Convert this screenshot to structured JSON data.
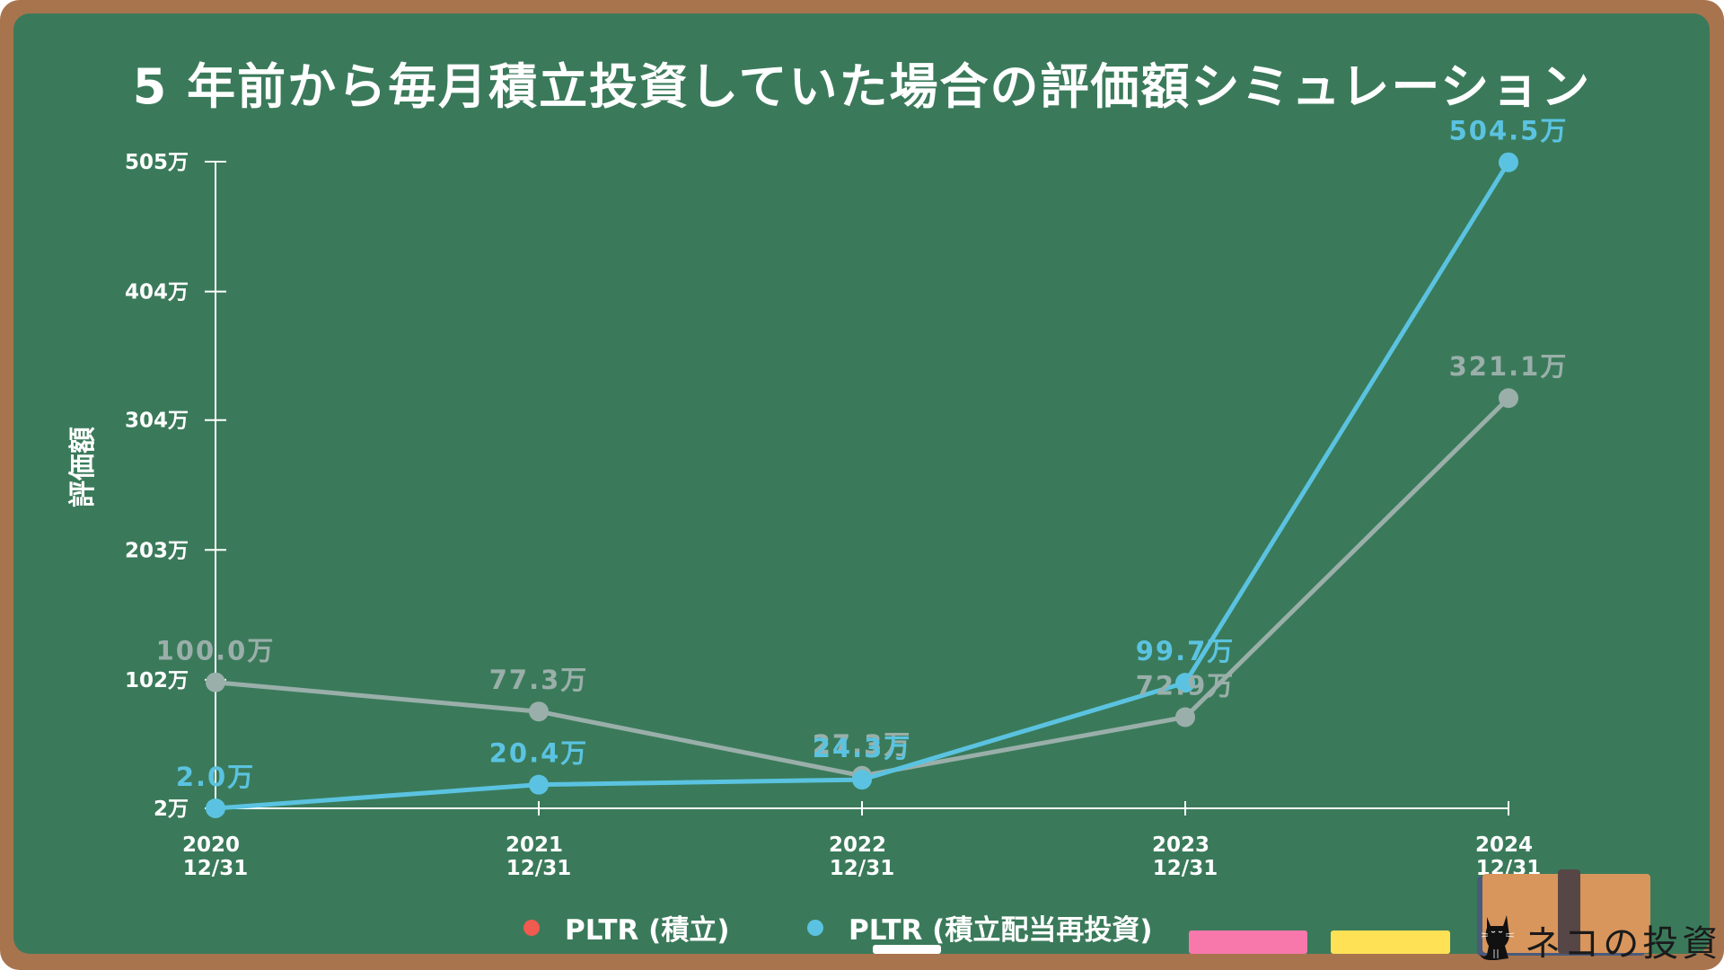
{
  "title": "5 年前から毎月積立投資していた場合の評価額シミュレーション",
  "colors": {
    "frame": "#A8744E",
    "board": "#3A7A5A",
    "series_gray": "#9AAFAA",
    "series_blue": "#5BC3E1",
    "legend_red": "#F05A4F",
    "chalk_white": "#FFFFFF",
    "chalk_pink": "#F878AC",
    "chalk_yellow": "#FFE156"
  },
  "legend": {
    "items": [
      {
        "label": "PLTR (積立)",
        "color": "#F05A4F"
      },
      {
        "label": "PLTR (積立配当再投資)",
        "color": "#5BC3E1"
      }
    ]
  },
  "brand": {
    "label": "ネコの投資",
    "icon": "black-cat-icon"
  },
  "chart_data": {
    "type": "line",
    "title": "5 年前から毎月積立投資していた場合の評価額シミュレーション",
    "xlabel": "",
    "ylabel": "評価額",
    "categories": [
      "2020\n12/31",
      "2021\n12/31",
      "2022\n12/31",
      "2023\n12/31",
      "2024\n12/31"
    ],
    "x_tick_labels": [
      {
        "year": "2020",
        "date": "12/31"
      },
      {
        "year": "2021",
        "date": "12/31"
      },
      {
        "year": "2022",
        "date": "12/31"
      },
      {
        "year": "2023",
        "date": "12/31"
      },
      {
        "year": "2024",
        "date": "12/31"
      }
    ],
    "y_ticks": [
      2,
      102,
      203,
      304,
      404,
      505
    ],
    "y_tick_labels": [
      "2万",
      "102万",
      "203万",
      "304万",
      "404万",
      "505万"
    ],
    "ylim": [
      2,
      505
    ],
    "unit": "万",
    "grid": false,
    "legend_position": "bottom",
    "series": [
      {
        "name": "PLTR (積立)",
        "color": "#9AAFAA",
        "values": [
          100.0,
          77.3,
          27.3,
          72.9,
          321.1
        ],
        "labels": [
          "100.0万",
          "77.3万",
          "27.3万",
          "72.9万",
          "321.1万"
        ]
      },
      {
        "name": "PLTR (積立配当再投資)",
        "color": "#5BC3E1",
        "values": [
          2.0,
          20.4,
          24.3,
          99.7,
          504.5
        ],
        "labels": [
          "2.0万",
          "20.4万",
          "24.3万",
          "99.7万",
          "504.5万"
        ]
      }
    ]
  }
}
